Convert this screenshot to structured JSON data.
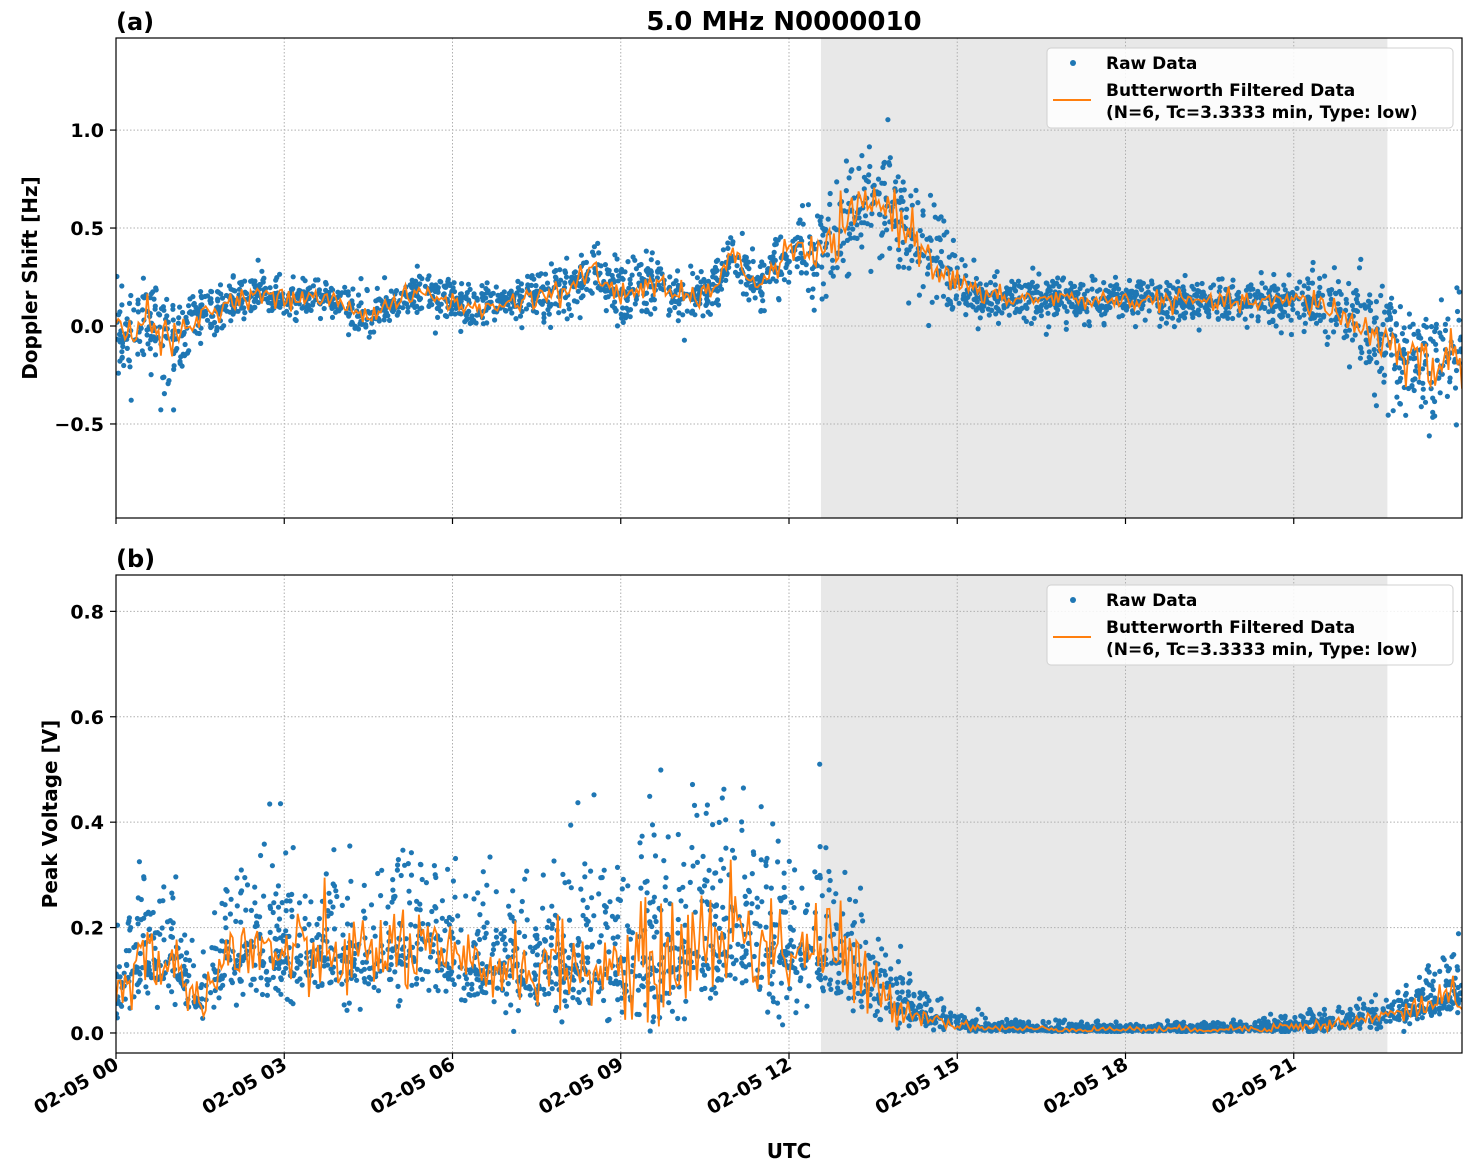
{
  "title": "5.0 MHz N0000010",
  "xlabel": "UTC",
  "x_tick_labels": [
    "02-05 00",
    "02-05 03",
    "02-05 06",
    "02-05 09",
    "02-05 12",
    "02-05 15",
    "02-05 18",
    "02-05 21"
  ],
  "shaded_interval_hours": [
    12.57,
    22.67
  ],
  "legend": {
    "raw": "Raw Data",
    "filtered_line1": "Butterworth Filtered Data",
    "filtered_line2": "(N=6, Tc=3.3333 min, Type: low)",
    "placement": "top-right"
  },
  "colors": {
    "raw": "#1f77b4",
    "filtered": "#ff7f0e",
    "shade": "#e8e8e8"
  },
  "chart_data": [
    {
      "type": "scatter+line",
      "panel_label": "(a)",
      "ylabel": "Doppler Shift [Hz]",
      "xlim_hours": [
        0,
        24
      ],
      "ylim": [
        -0.98,
        1.47
      ],
      "y_ticks": [
        -0.5,
        0.0,
        0.5,
        1.0
      ],
      "y_tick_labels": [
        "−0.5",
        "0.0",
        "0.5",
        "1.0"
      ],
      "grid": true,
      "x_hours_step": 0.5,
      "filtered": [
        -0.05,
        0.05,
        -0.1,
        0.05,
        0.12,
        0.17,
        0.13,
        0.15,
        0.12,
        0.05,
        0.13,
        0.17,
        0.12,
        0.08,
        0.12,
        0.15,
        0.18,
        0.28,
        0.15,
        0.22,
        0.15,
        0.15,
        0.35,
        0.2,
        0.4,
        0.35,
        0.5,
        0.65,
        0.55,
        0.35,
        0.22,
        0.15,
        0.14,
        0.14,
        0.14,
        0.13,
        0.13,
        0.13,
        0.13,
        0.12,
        0.12,
        0.12,
        0.13,
        0.12,
        0.02,
        -0.05,
        -0.15,
        -0.2,
        -0.15
      ],
      "raw_spread": [
        0.2,
        0.2,
        0.22,
        0.15,
        0.1,
        0.1,
        0.1,
        0.1,
        0.1,
        0.1,
        0.1,
        0.1,
        0.1,
        0.1,
        0.1,
        0.12,
        0.14,
        0.15,
        0.14,
        0.14,
        0.14,
        0.12,
        0.12,
        0.12,
        0.15,
        0.2,
        0.25,
        0.28,
        0.25,
        0.22,
        0.15,
        0.1,
        0.1,
        0.1,
        0.1,
        0.1,
        0.1,
        0.1,
        0.1,
        0.1,
        0.1,
        0.1,
        0.12,
        0.15,
        0.2,
        0.25,
        0.28,
        0.3,
        0.3
      ]
    },
    {
      "type": "scatter+line",
      "panel_label": "(b)",
      "ylabel": "Peak Voltage [V]",
      "xlim_hours": [
        0,
        24
      ],
      "ylim": [
        -0.038,
        0.869
      ],
      "y_ticks": [
        0.0,
        0.2,
        0.4,
        0.6,
        0.8
      ],
      "y_tick_labels": [
        "0.0",
        "0.2",
        "0.4",
        "0.6",
        "0.8"
      ],
      "grid": true,
      "x_hours_step": 0.5,
      "filtered": [
        0.07,
        0.15,
        0.13,
        0.06,
        0.15,
        0.15,
        0.15,
        0.14,
        0.15,
        0.14,
        0.17,
        0.15,
        0.13,
        0.12,
        0.13,
        0.12,
        0.13,
        0.12,
        0.12,
        0.12,
        0.15,
        0.17,
        0.2,
        0.17,
        0.16,
        0.17,
        0.14,
        0.08,
        0.05,
        0.03,
        0.015,
        0.01,
        0.008,
        0.008,
        0.007,
        0.007,
        0.007,
        0.007,
        0.007,
        0.007,
        0.008,
        0.01,
        0.012,
        0.015,
        0.02,
        0.03,
        0.04,
        0.06,
        0.08
      ],
      "raw_spread": [
        0.08,
        0.12,
        0.1,
        0.05,
        0.14,
        0.14,
        0.14,
        0.14,
        0.14,
        0.14,
        0.15,
        0.13,
        0.12,
        0.11,
        0.12,
        0.12,
        0.14,
        0.14,
        0.13,
        0.2,
        0.2,
        0.2,
        0.2,
        0.2,
        0.18,
        0.18,
        0.16,
        0.1,
        0.06,
        0.03,
        0.015,
        0.012,
        0.01,
        0.01,
        0.01,
        0.01,
        0.01,
        0.01,
        0.01,
        0.01,
        0.01,
        0.015,
        0.02,
        0.02,
        0.02,
        0.03,
        0.04,
        0.05,
        0.08
      ]
    }
  ]
}
